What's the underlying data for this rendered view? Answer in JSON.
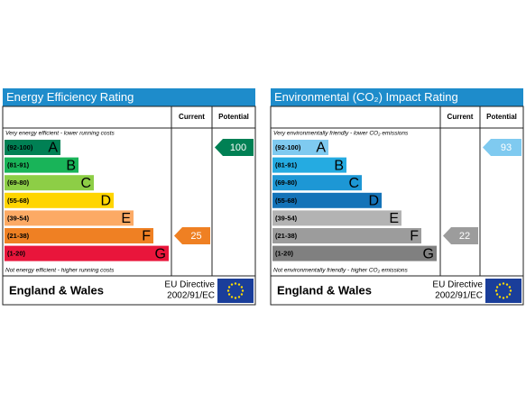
{
  "panels": [
    {
      "title": "Energy Efficiency Rating",
      "current_label": "Current",
      "potential_label": "Potential",
      "top_note": "Very energy efficient - lower running costs",
      "bottom_note": "Not energy efficient - higher running costs",
      "bands": [
        {
          "range": "(92-100)",
          "letter": "A",
          "color": "#008054"
        },
        {
          "range": "(81-91)",
          "letter": "B",
          "color": "#19b459"
        },
        {
          "range": "(69-80)",
          "letter": "C",
          "color": "#8dce46"
        },
        {
          "range": "(55-68)",
          "letter": "D",
          "color": "#ffd500"
        },
        {
          "range": "(39-54)",
          "letter": "E",
          "color": "#fcaa65"
        },
        {
          "range": "(21-38)",
          "letter": "F",
          "color": "#ef8023"
        },
        {
          "range": "(1-20)",
          "letter": "G",
          "color": "#e9153b"
        }
      ],
      "current": 25,
      "potential": 100,
      "country": "England & Wales",
      "directive": [
        "EU Directive",
        "2002/91/EC"
      ]
    },
    {
      "title": "Environmental (CO₂) Impact Rating",
      "current_label": "Current",
      "potential_label": "Potential",
      "top_note": "Very environmentally friendly - lower CO₂ emissions",
      "bottom_note": "Not environmentally friendly - higher CO₂ emissions",
      "bands": [
        {
          "range": "(92-100)",
          "letter": "A",
          "color": "#7fcaf0"
        },
        {
          "range": "(81-91)",
          "letter": "B",
          "color": "#25abe1"
        },
        {
          "range": "(69-80)",
          "letter": "C",
          "color": "#1d97d5"
        },
        {
          "range": "(55-68)",
          "letter": "D",
          "color": "#1473b8"
        },
        {
          "range": "(39-54)",
          "letter": "E",
          "color": "#b3b3b3"
        },
        {
          "range": "(21-38)",
          "letter": "F",
          "color": "#9c9c9c"
        },
        {
          "range": "(1-20)",
          "letter": "G",
          "color": "#808080"
        }
      ],
      "current": 22,
      "potential": 93,
      "country": "England & Wales",
      "directive": [
        "EU Directive",
        "2002/91/EC"
      ]
    }
  ]
}
